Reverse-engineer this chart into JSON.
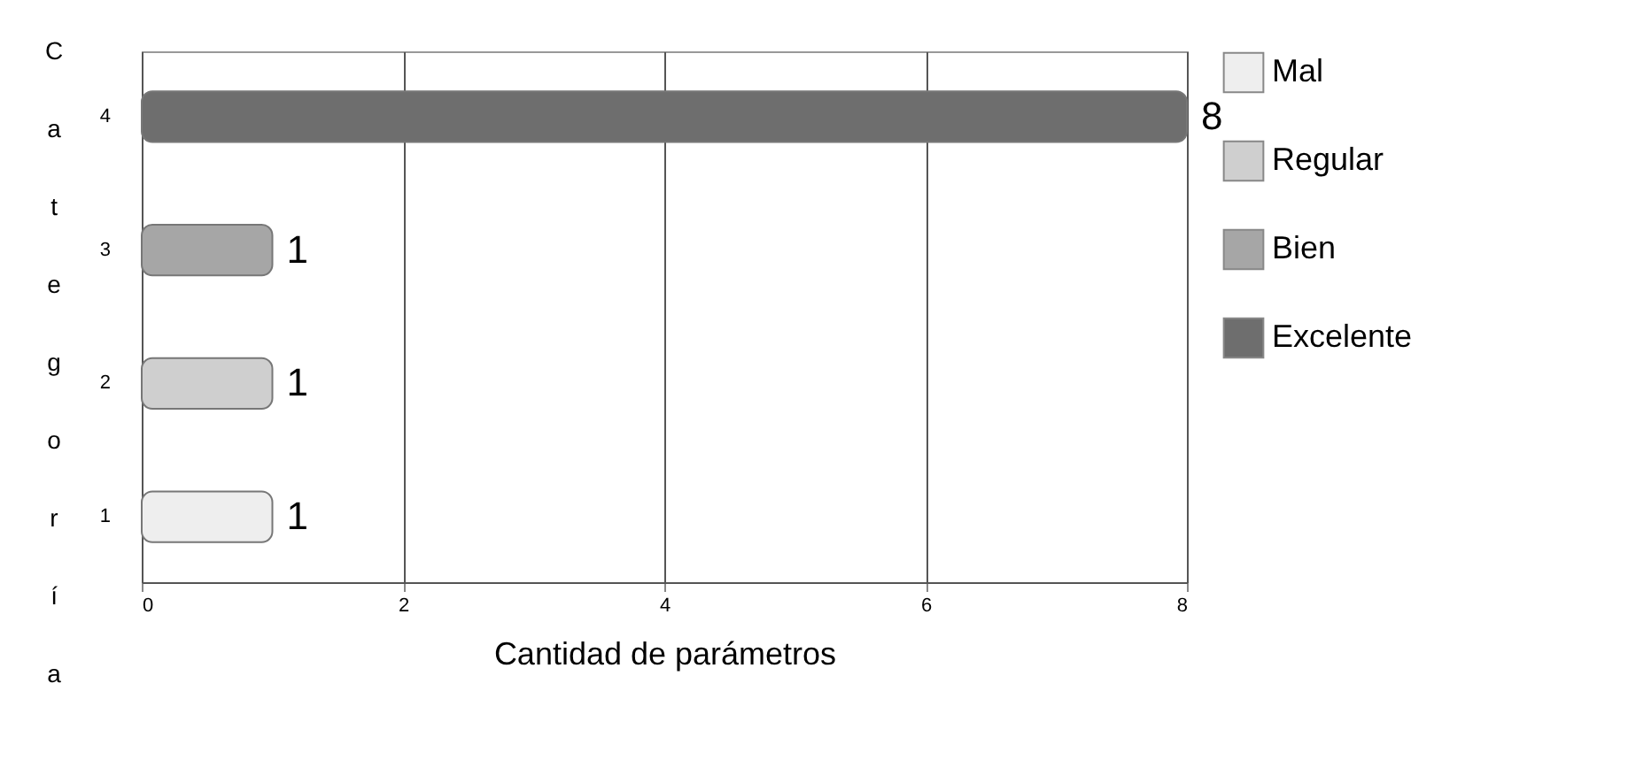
{
  "chart_data": {
    "type": "bar",
    "orientation": "horizontal",
    "xlabel": "Cantidad de parámetros",
    "ylabel": "Categoría",
    "categories": [
      "4",
      "3",
      "2",
      "1"
    ],
    "series": [
      {
        "name": "Mal",
        "color": "#eeeeee",
        "values": [
          null,
          null,
          null,
          1
        ]
      },
      {
        "name": "Regular",
        "color": "#cfcfcf",
        "values": [
          null,
          null,
          1,
          null
        ]
      },
      {
        "name": "Bien",
        "color": "#a6a6a6",
        "values": [
          null,
          1,
          null,
          null
        ]
      },
      {
        "name": "Excelente",
        "color": "#6e6e6e",
        "values": [
          8,
          null,
          null,
          null
        ]
      }
    ],
    "xlim": [
      0,
      8
    ],
    "xticks": [
      0,
      2,
      4,
      6,
      8
    ],
    "grid": "x",
    "legend": "right",
    "data_labels": true
  }
}
